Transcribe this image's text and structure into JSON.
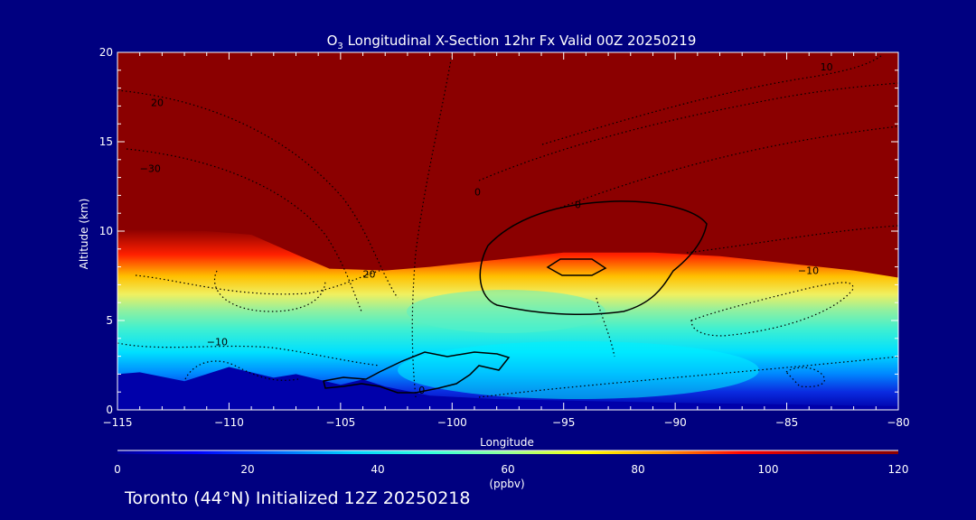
{
  "chart_data": {
    "type": "heatmap",
    "title_chem": "O",
    "title_sub": "3",
    "title_rest": " Longitudinal X-Section 12hr  Fx Valid 00Z 20250219",
    "xlabel": "Longitude",
    "ylabel": "Altitude (km)",
    "xlim": [
      -115,
      -80
    ],
    "ylim": [
      0,
      20
    ],
    "x_ticks": [
      -115,
      -110,
      -105,
      -100,
      -95,
      -90,
      -85,
      -80
    ],
    "x_tick_labels": [
      "−115",
      "−110",
      "−105",
      "−100",
      "−95",
      "−90",
      "−85",
      "−80"
    ],
    "y_ticks": [
      0,
      5,
      10,
      15,
      20
    ],
    "y_tick_labels": [
      "0",
      "5",
      "10",
      "15",
      "20"
    ],
    "colorbar": {
      "label": "(ppbv)",
      "range": [
        0,
        120
      ],
      "ticks": [
        0,
        20,
        40,
        60,
        80,
        100,
        120
      ],
      "tick_labels": [
        "0",
        "20",
        "40",
        "60",
        "80",
        "100",
        "120"
      ],
      "colors": [
        "#000096",
        "#0000ff",
        "#0064ff",
        "#00d2ff",
        "#32ffdc",
        "#96ff96",
        "#ffff00",
        "#ff9600",
        "#ff0000",
        "#aa0000",
        "#8b0000"
      ]
    },
    "tropopause_height_km": [
      [
        -115,
        10.1
      ],
      [
        -111,
        10.0
      ],
      [
        -109,
        9.8
      ],
      [
        -107,
        8.7
      ],
      [
        -105.5,
        7.9
      ],
      [
        -103,
        7.8
      ],
      [
        -101,
        8.0
      ],
      [
        -98,
        8.4
      ],
      [
        -95,
        8.8
      ],
      [
        -91,
        8.8
      ],
      [
        -88,
        8.6
      ],
      [
        -85,
        8.2
      ],
      [
        -82,
        7.8
      ],
      [
        -80,
        7.4
      ]
    ],
    "terrain_height_km": [
      [
        -115,
        2.0
      ],
      [
        -114,
        2.1
      ],
      [
        -112,
        1.6
      ],
      [
        -110,
        2.4
      ],
      [
        -108,
        1.8
      ],
      [
        -107,
        2.0
      ],
      [
        -105,
        1.4
      ],
      [
        -104,
        1.7
      ],
      [
        -103,
        1.3
      ],
      [
        -101,
        0.8
      ],
      [
        -98,
        0.6
      ],
      [
        -90,
        0.4
      ],
      [
        -80,
        0.2
      ]
    ],
    "contour_labels": [
      {
        "text": "20",
        "lon": -113.5,
        "alt": 17.0
      },
      {
        "text": "−30",
        "lon": -114.0,
        "alt": 13.3
      },
      {
        "text": "0",
        "lon": -94.5,
        "alt": 11.3
      },
      {
        "text": "0",
        "lon": -99.0,
        "alt": 12.0
      },
      {
        "text": "10",
        "lon": -83.5,
        "alt": 19.0
      },
      {
        "text": "20",
        "lon": -104.0,
        "alt": 7.4
      },
      {
        "text": "−10",
        "lon": -84.5,
        "alt": 7.6
      },
      {
        "text": "−10",
        "lon": -111.0,
        "alt": 3.6
      },
      {
        "text": "0",
        "lon": -101.5,
        "alt": 0.9
      }
    ]
  },
  "footer": "Toronto (44°N) Initialized 12Z 20250218"
}
